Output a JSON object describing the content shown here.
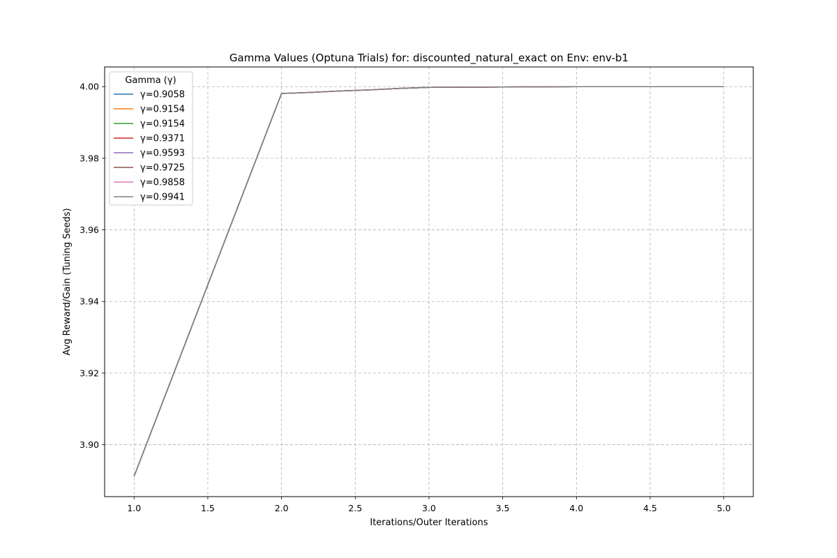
{
  "chart_data": {
    "type": "line",
    "title": "Gamma Values (Optuna Trials) for: discounted_natural_exact on Env: env-b1",
    "xlabel": "Iterations/Outer Iterations",
    "ylabel": "Avg Reward/Gain (Tuning Seeds)",
    "xlim": [
      0.8,
      5.2
    ],
    "ylim": [
      3.8855,
      4.0055
    ],
    "xticks": [
      1.0,
      1.5,
      2.0,
      2.5,
      3.0,
      3.5,
      4.0,
      4.5,
      5.0
    ],
    "xtick_labels": [
      "1.0",
      "1.5",
      "2.0",
      "2.5",
      "3.0",
      "3.5",
      "4.0",
      "4.5",
      "5.0"
    ],
    "yticks": [
      3.9,
      3.92,
      3.94,
      3.96,
      3.98,
      4.0
    ],
    "ytick_labels": [
      "3.90",
      "3.92",
      "3.94",
      "3.96",
      "3.98",
      "4.00"
    ],
    "grid": true,
    "legend": {
      "title": "Gamma (γ)",
      "placement": "upper-left"
    },
    "series": [
      {
        "name": "γ=0.9058",
        "color": "#1f77b4",
        "x": [
          1,
          2,
          2.2,
          2.4,
          2.6,
          2.8,
          3,
          3.5,
          4
        ],
        "y": [
          3.8912,
          3.9981,
          3.9984,
          3.9988,
          3.9991,
          3.9995,
          3.9998,
          3.9999,
          4.0
        ]
      },
      {
        "name": "γ=0.9154",
        "color": "#ff7f0e",
        "x": [
          1,
          2,
          2.2,
          2.4,
          2.6,
          2.8,
          3,
          3.5,
          4
        ],
        "y": [
          3.8912,
          3.9981,
          3.9984,
          3.9988,
          3.9991,
          3.9995,
          3.9998,
          3.9999,
          4.0
        ]
      },
      {
        "name": "γ=0.9154",
        "color": "#2ca02c",
        "x": [
          1,
          2,
          2.2,
          2.4,
          2.6,
          2.8,
          3,
          3.5,
          4
        ],
        "y": [
          3.8912,
          3.9981,
          3.9984,
          3.9988,
          3.9991,
          3.9995,
          3.9998,
          3.9999,
          4.0
        ]
      },
      {
        "name": "γ=0.9371",
        "color": "#d62728",
        "x": [
          1,
          2,
          2.2,
          2.4,
          2.6,
          2.8,
          3,
          3.5,
          4
        ],
        "y": [
          3.8912,
          3.9981,
          3.9984,
          3.9988,
          3.9991,
          3.9995,
          3.9998,
          3.9999,
          4.0
        ]
      },
      {
        "name": "γ=0.9593",
        "color": "#9467bd",
        "x": [
          1,
          2,
          2.2,
          2.4,
          2.6,
          2.8,
          3,
          3.5,
          4
        ],
        "y": [
          3.8912,
          3.9981,
          3.9984,
          3.9988,
          3.9991,
          3.9995,
          3.9998,
          3.9999,
          4.0
        ]
      },
      {
        "name": "γ=0.9725",
        "color": "#8c564b",
        "x": [
          1,
          2,
          2.2,
          2.4,
          2.6,
          2.8,
          3,
          3.5,
          4
        ],
        "y": [
          3.8912,
          3.9981,
          3.9984,
          3.9988,
          3.9991,
          3.9995,
          3.9998,
          3.9999,
          4.0
        ]
      },
      {
        "name": "γ=0.9858",
        "color": "#e377c2",
        "x": [
          1,
          2,
          2.2,
          2.4,
          2.6,
          2.8,
          3,
          3.5,
          4
        ],
        "y": [
          3.8912,
          3.9981,
          3.9984,
          3.9988,
          3.9991,
          3.9995,
          3.9998,
          3.9999,
          4.0
        ]
      },
      {
        "name": "γ=0.9941",
        "color": "#7f7f7f",
        "x": [
          1,
          2,
          2.2,
          2.4,
          2.6,
          2.8,
          3,
          3.5,
          4,
          4.5,
          5
        ],
        "y": [
          3.8912,
          3.9981,
          3.9984,
          3.9988,
          3.9991,
          3.9995,
          3.9998,
          3.9999,
          4.0,
          4.0,
          4.0
        ]
      }
    ]
  }
}
